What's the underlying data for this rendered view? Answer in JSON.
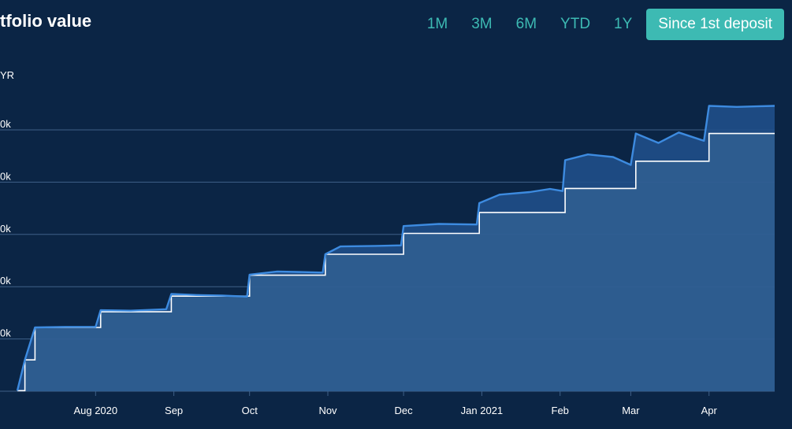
{
  "header": {
    "title": "tfolio value",
    "ranges": [
      {
        "label": "1M",
        "active": false
      },
      {
        "label": "3M",
        "active": false
      },
      {
        "label": "6M",
        "active": false
      },
      {
        "label": "YTD",
        "active": false
      },
      {
        "label": "1Y",
        "active": false
      },
      {
        "label": "Since 1st deposit",
        "active": true
      }
    ]
  },
  "colors": {
    "background": "#0b2545",
    "accent": "#3dbab3",
    "value_line": "#3d8be0",
    "deposit_line": "#ffffff",
    "area_fill": "#2f5f93",
    "gridline": "#3f6088"
  },
  "chart_data": {
    "type": "line",
    "y_unit_label": "YR",
    "x_range": [
      "2020-07-01",
      "2021-04-27"
    ],
    "ylim": [
      0,
      50
    ],
    "y_ticks": [
      {
        "value": 10,
        "label": "0k"
      },
      {
        "value": 20,
        "label": "0k"
      },
      {
        "value": 30,
        "label": "0k"
      },
      {
        "value": 40,
        "label": "0k"
      },
      {
        "value": 50,
        "label": "0k"
      }
    ],
    "x_ticks": [
      {
        "date": "2020-08-01",
        "label": "Aug 2020"
      },
      {
        "date": "2020-09-01",
        "label": "Sep"
      },
      {
        "date": "2020-10-01",
        "label": "Oct"
      },
      {
        "date": "2020-11-01",
        "label": "Nov"
      },
      {
        "date": "2020-12-01",
        "label": "Dec"
      },
      {
        "date": "2021-01-01",
        "label": "Jan 2021"
      },
      {
        "date": "2021-02-01",
        "label": "Feb"
      },
      {
        "date": "2021-03-01",
        "label": "Mar"
      },
      {
        "date": "2021-04-01",
        "label": "Apr"
      }
    ],
    "series": [
      {
        "key": "deposits",
        "style": "step",
        "points": [
          [
            "2020-07-01",
            0.1
          ],
          [
            "2020-07-04",
            6
          ],
          [
            "2020-07-08",
            12.2
          ],
          [
            "2020-08-03",
            15.2
          ],
          [
            "2020-08-31",
            18.2
          ],
          [
            "2020-10-01",
            22.2
          ],
          [
            "2020-10-31",
            26.2
          ],
          [
            "2020-12-01",
            30.2
          ],
          [
            "2020-12-31",
            34.2
          ],
          [
            "2021-02-03",
            38.8
          ],
          [
            "2021-03-03",
            44
          ],
          [
            "2021-04-01",
            49.3
          ],
          [
            "2021-04-27",
            49.3
          ]
        ]
      },
      {
        "key": "value",
        "style": "line",
        "points": [
          [
            "2020-07-01",
            0.1
          ],
          [
            "2020-07-04",
            6
          ],
          [
            "2020-07-08",
            12.2
          ],
          [
            "2020-07-20",
            12.3
          ],
          [
            "2020-08-01",
            12.3
          ],
          [
            "2020-08-03",
            15.5
          ],
          [
            "2020-08-15",
            15.4
          ],
          [
            "2020-08-29",
            15.7
          ],
          [
            "2020-08-31",
            18.6
          ],
          [
            "2020-09-10",
            18.4
          ],
          [
            "2020-09-20",
            18.3
          ],
          [
            "2020-09-30",
            18.1
          ],
          [
            "2020-10-01",
            22.3
          ],
          [
            "2020-10-12",
            22.9
          ],
          [
            "2020-10-30",
            22.7
          ],
          [
            "2020-10-31",
            26.2
          ],
          [
            "2020-11-06",
            27.7
          ],
          [
            "2020-11-20",
            27.8
          ],
          [
            "2020-11-30",
            27.9
          ],
          [
            "2020-12-01",
            31.6
          ],
          [
            "2020-12-15",
            32.0
          ],
          [
            "2020-12-30",
            31.9
          ],
          [
            "2020-12-31",
            36.0
          ],
          [
            "2021-01-08",
            37.6
          ],
          [
            "2021-01-20",
            38.1
          ],
          [
            "2021-01-28",
            38.7
          ],
          [
            "2021-02-02",
            38.3
          ],
          [
            "2021-02-03",
            44.2
          ],
          [
            "2021-02-12",
            45.3
          ],
          [
            "2021-02-22",
            44.8
          ],
          [
            "2021-03-01",
            43.3
          ],
          [
            "2021-03-03",
            49.3
          ],
          [
            "2021-03-12",
            47.5
          ],
          [
            "2021-03-20",
            49.5
          ],
          [
            "2021-03-30",
            47.9
          ],
          [
            "2021-04-01",
            54.6
          ],
          [
            "2021-04-12",
            54.4
          ],
          [
            "2021-04-20",
            54.5
          ],
          [
            "2021-04-27",
            54.6
          ]
        ]
      }
    ]
  }
}
